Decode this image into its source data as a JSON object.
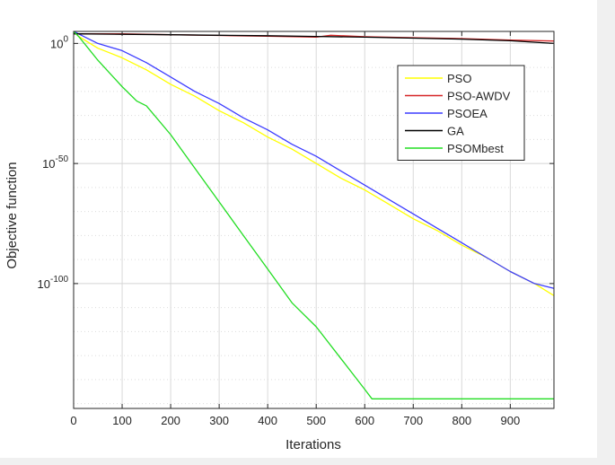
{
  "chart_data": {
    "type": "line",
    "xlabel": "Iterations",
    "ylabel": "Objective function",
    "yscale": "log",
    "xlim": [
      0,
      990
    ],
    "ylim_exponent": [
      -152,
      5
    ],
    "x_ticks": [
      0,
      100,
      200,
      300,
      400,
      500,
      600,
      700,
      800,
      900
    ],
    "x_tick_labels": [
      "0",
      "100",
      "200",
      "300",
      "400",
      "500",
      "600",
      "700",
      "800",
      "900"
    ],
    "y_tick_exponents": [
      0,
      -50,
      -100
    ],
    "y_tick_labels": [
      {
        "base": "10",
        "exp": "0"
      },
      {
        "base": "10",
        "exp": "-50"
      },
      {
        "base": "10",
        "exp": "-100"
      }
    ],
    "grid": true,
    "legend_position": "top-right",
    "series": [
      {
        "name": "PSO",
        "color": "#ffff00",
        "x": [
          0,
          10,
          50,
          100,
          150,
          200,
          250,
          300,
          350,
          400,
          450,
          500,
          550,
          600,
          650,
          700,
          750,
          800,
          850,
          900,
          950,
          990
        ],
        "log10_y": [
          5,
          3,
          -2,
          -6,
          -11,
          -17,
          -22,
          -28,
          -33,
          -39,
          -44,
          -50,
          -56,
          -61,
          -67,
          -73,
          -78,
          -84,
          -89,
          -95,
          -100,
          -105
        ]
      },
      {
        "name": "PSO-AWDV",
        "color": "#d62728",
        "x": [
          0,
          10,
          100,
          200,
          300,
          400,
          500,
          530,
          600,
          700,
          800,
          900,
          990
        ],
        "log10_y": [
          4,
          4,
          4,
          3.6,
          3.3,
          3,
          2.6,
          3.4,
          2.8,
          2.4,
          2,
          1.4,
          1
        ]
      },
      {
        "name": "PSOEA",
        "color": "#3c3cff",
        "x": [
          0,
          10,
          50,
          100,
          150,
          200,
          250,
          300,
          350,
          400,
          450,
          500,
          550,
          600,
          650,
          700,
          750,
          800,
          850,
          900,
          950,
          990
        ],
        "log10_y": [
          5,
          4,
          0,
          -3,
          -8,
          -14,
          -20,
          -25,
          -31,
          -36,
          -42,
          -47,
          -53,
          -59,
          -65,
          -71,
          -77,
          -83,
          -89,
          -95,
          -100,
          -102
        ]
      },
      {
        "name": "GA",
        "color": "#000000",
        "x": [
          0,
          10,
          100,
          200,
          300,
          400,
          500,
          600,
          700,
          800,
          900,
          990
        ],
        "log10_y": [
          4,
          4,
          3.8,
          3.6,
          3.4,
          3.2,
          2.9,
          2.6,
          2.2,
          1.8,
          1.1,
          0
        ]
      },
      {
        "name": "PSOMbest",
        "color": "#22dd22",
        "x": [
          0,
          10,
          30,
          50,
          100,
          130,
          150,
          200,
          250,
          300,
          350,
          400,
          450,
          500,
          550,
          600,
          615,
          700,
          800,
          900,
          990
        ],
        "log10_y": [
          5,
          3,
          -2,
          -7,
          -18,
          -24,
          -26,
          -38,
          -52,
          -66,
          -80,
          -94,
          -108,
          -118,
          -131,
          -144,
          -148,
          -148,
          -148,
          -148,
          -148
        ]
      }
    ]
  }
}
